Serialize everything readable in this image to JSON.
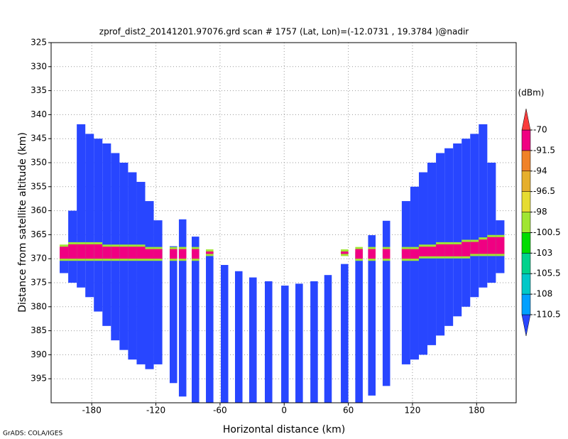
{
  "chart_data": {
    "type": "profile",
    "title": "zprof_dist2_20141201.97076.grd  scan # 1757  (Lat, Lon)=(-12.0731 , 19.3784 )@nadir",
    "xlabel": "Horizontal distance (km)",
    "ylabel": "Distance from satellite altitude (km)",
    "footer": "GrADS: COLA/IGES",
    "xlim": [
      -218,
      217
    ],
    "ylim": [
      400,
      325
    ],
    "xticks": [
      -180,
      -120,
      -60,
      0,
      60,
      120,
      180
    ],
    "yticks": [
      325,
      330,
      335,
      340,
      345,
      350,
      355,
      360,
      365,
      370,
      375,
      380,
      385,
      390,
      395
    ],
    "grid": true,
    "colorbar": {
      "label": "(dBm)",
      "levels": [
        -110.5,
        -108,
        -105.5,
        -103,
        -100.5,
        -98,
        -96.5,
        -94,
        -91.5,
        -70
      ],
      "colors": [
        "#2846ff",
        "#00a0ff",
        "#00c8c8",
        "#00d28c",
        "#00dc00",
        "#a0e632",
        "#e6dc32",
        "#e6af2d",
        "#f08228",
        "#f00082",
        "#fa3c3c"
      ]
    },
    "background_dbm": -112,
    "band_dbm": -85,
    "band_edge_dbm": -99,
    "columns": {
      "x": [
        -206,
        -198,
        -190,
        -182,
        -174,
        -166,
        -158,
        -150,
        -142,
        -134,
        -126,
        -118,
        -103.6,
        -95,
        -83,
        -69.7,
        -55.8,
        -42.5,
        -29.2,
        -14.6,
        0.7,
        14,
        28,
        41,
        56.5,
        70,
        82,
        95.6,
        114,
        122,
        130,
        138,
        146,
        154,
        162,
        170,
        178,
        186,
        194,
        202
      ],
      "widths": [
        8,
        8,
        8,
        8,
        8,
        8,
        8,
        8,
        8,
        8,
        8,
        8,
        7,
        7,
        7,
        7,
        7,
        7,
        7,
        7,
        7,
        7,
        7,
        7,
        7,
        7,
        7,
        7,
        8,
        8,
        8,
        8,
        8,
        8,
        8,
        8,
        8,
        8,
        8,
        8
      ],
      "top": [
        368,
        360,
        342,
        344,
        345,
        346,
        348,
        350,
        352,
        354,
        358,
        362,
        367.4,
        361.8,
        365.4,
        368.6,
        371.3,
        372.6,
        373.9,
        374.7,
        375.6,
        375.2,
        374.7,
        373.4,
        371.1,
        368.6,
        365.1,
        362.1,
        358,
        355,
        352,
        350,
        348,
        347,
        346,
        345,
        344,
        342,
        350,
        362
      ],
      "bottom": [
        373,
        375,
        376,
        378,
        381,
        384,
        387,
        389,
        391,
        392,
        393,
        392,
        395.9,
        398.7,
        400,
        400,
        400,
        400,
        400,
        400,
        400,
        400,
        400,
        400,
        400,
        400,
        398.5,
        396.5,
        392,
        391,
        390,
        388,
        386,
        384,
        382,
        380,
        378,
        376,
        375,
        373
      ],
      "band_top": [
        367.5,
        367,
        367,
        367,
        367,
        367.5,
        367.5,
        367.5,
        367.5,
        367.5,
        368,
        368,
        368,
        368,
        368,
        368.5,
        null,
        null,
        null,
        null,
        null,
        null,
        null,
        null,
        368.5,
        368,
        368,
        368,
        368,
        368,
        367.5,
        367.5,
        367,
        367,
        367,
        366.5,
        366.5,
        366,
        365.5,
        365.5
      ],
      "band_bottom": [
        370,
        370,
        370,
        370,
        370,
        370,
        370,
        370,
        370,
        370,
        370,
        370,
        370,
        370,
        370,
        369,
        null,
        null,
        null,
        null,
        null,
        null,
        null,
        null,
        369,
        370,
        370,
        370,
        370,
        370,
        369.5,
        369.5,
        369.5,
        369.5,
        369.5,
        369.5,
        369,
        369,
        369,
        369
      ]
    }
  }
}
